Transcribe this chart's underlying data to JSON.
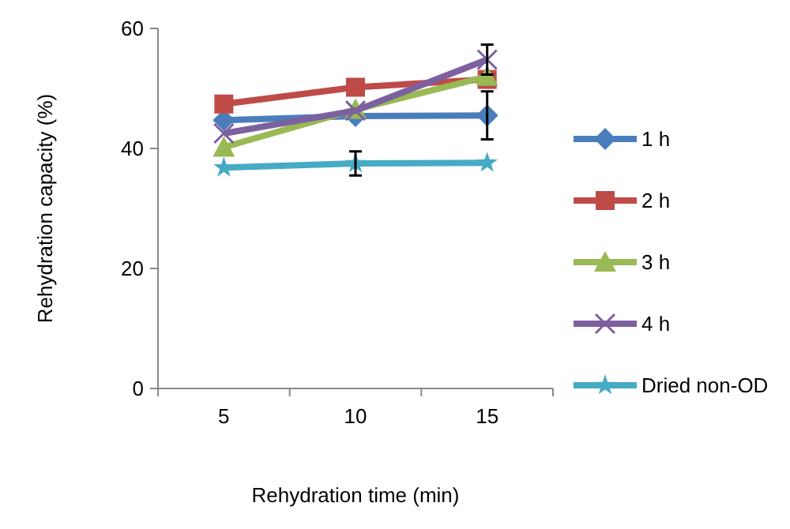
{
  "chart_data": {
    "type": "line",
    "xlabel": "Rehydration time (min)",
    "ylabel": "Rehydration capacity (%)",
    "categories": [
      "5",
      "10",
      "15"
    ],
    "ylim": [
      0,
      60
    ],
    "yticks": [
      0,
      20,
      40,
      60
    ],
    "grid": false,
    "legend": "right",
    "series": [
      {
        "name": "1 h",
        "color": "#4a7ebb",
        "marker": "diamond",
        "values": [
          44.7,
          45.4,
          45.5
        ],
        "errors": [
          null,
          null,
          4
        ]
      },
      {
        "name": "2 h",
        "color": "#be4b48",
        "marker": "square",
        "values": [
          47.4,
          50.2,
          51.5
        ]
      },
      {
        "name": "3 h",
        "color": "#98b954",
        "marker": "triangle",
        "values": [
          40.2,
          46.5,
          52
        ]
      },
      {
        "name": "4 h",
        "color": "#7d60a0",
        "marker": "cross",
        "values": [
          42.5,
          46.3,
          54.8
        ],
        "errors": [
          null,
          null,
          2.5
        ]
      },
      {
        "name": "Dried non-OD",
        "color": "#46aac5",
        "marker": "star",
        "values": [
          36.8,
          37.5,
          37.6
        ],
        "errors": [
          null,
          2,
          null
        ]
      }
    ]
  }
}
